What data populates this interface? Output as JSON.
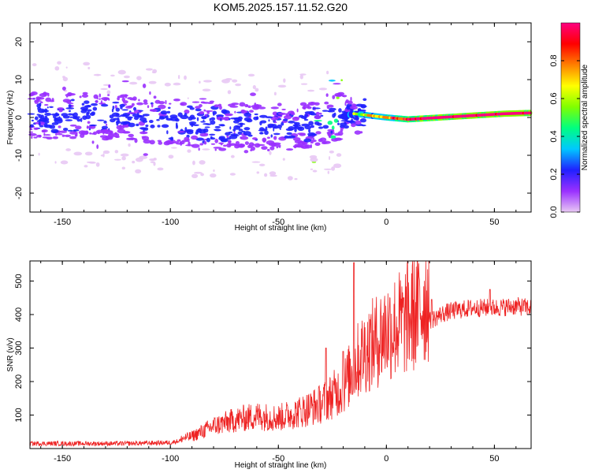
{
  "title": "KOM5.2025.157.11.52.G20",
  "chart_data": [
    {
      "type": "heatmap",
      "xlabel": "Height of straight line (km)",
      "ylabel": "Frequency (Hz)",
      "xlim": [
        -165,
        67
      ],
      "ylim": [
        -25,
        25
      ],
      "x_ticks": [
        -150,
        -100,
        -50,
        0,
        50
      ],
      "y_ticks": [
        -20,
        -10,
        0,
        10,
        20
      ],
      "colorbar": {
        "label": "Normalized spectral amplitude",
        "ticks": [
          0.0,
          0.2,
          0.4,
          0.6,
          0.8
        ],
        "range": [
          0,
          1
        ],
        "colors": [
          "#e8c8f4",
          "#9a30ff",
          "#2020ff",
          "#00c8ff",
          "#00ff80",
          "#80ff00",
          "#ffff00",
          "#ff8000",
          "#ff0000",
          "#ff0080"
        ]
      },
      "trend": [
        {
          "x": -160,
          "y": 0.5
        },
        {
          "x": -140,
          "y": 0.5
        },
        {
          "x": -120,
          "y": 0.0
        },
        {
          "x": -100,
          "y": -1.0
        },
        {
          "x": -80,
          "y": -2.0
        },
        {
          "x": -60,
          "y": -2.5
        },
        {
          "x": -45,
          "y": -3.0
        },
        {
          "x": -30,
          "y": -1.0
        },
        {
          "x": -15,
          "y": 1.0
        },
        {
          "x": 0,
          "y": 0.0
        },
        {
          "x": 10,
          "y": -0.5
        },
        {
          "x": 25,
          "y": 0.0
        },
        {
          "x": 40,
          "y": 0.5
        },
        {
          "x": 55,
          "y": 1.0
        },
        {
          "x": 67,
          "y": 1.2
        }
      ]
    },
    {
      "type": "line",
      "xlabel": "Height of straight line (km)",
      "ylabel": "SNR (v/v)",
      "xlim": [
        -165,
        67
      ],
      "ylim": [
        0,
        560
      ],
      "x_ticks": [
        -150,
        -100,
        -50,
        0,
        50
      ],
      "y_ticks": [
        100,
        200,
        300,
        400,
        500
      ],
      "color": "#ee2222",
      "series": [
        {
          "x": [
            -165,
            -140,
            -120,
            -100,
            -90,
            -80,
            -70,
            -60,
            -50,
            -40,
            -30,
            -20,
            -15,
            -10,
            -5,
            0,
            5,
            10,
            15,
            20,
            25,
            30,
            40,
            50,
            60,
            67
          ],
          "values": [
            15,
            15,
            15,
            18,
            30,
            55,
            70,
            80,
            75,
            90,
            110,
            150,
            200,
            240,
            260,
            290,
            300,
            320,
            340,
            380,
            400,
            410,
            420,
            420,
            425,
            420
          ]
        }
      ],
      "peaks": [
        {
          "x": -15,
          "y": 555
        },
        {
          "x": -28,
          "y": 300
        },
        {
          "x": -20,
          "y": 290
        },
        {
          "x": 8,
          "y": 450
        },
        {
          "x": 21,
          "y": 445
        },
        {
          "x": 48,
          "y": 475
        }
      ]
    }
  ]
}
